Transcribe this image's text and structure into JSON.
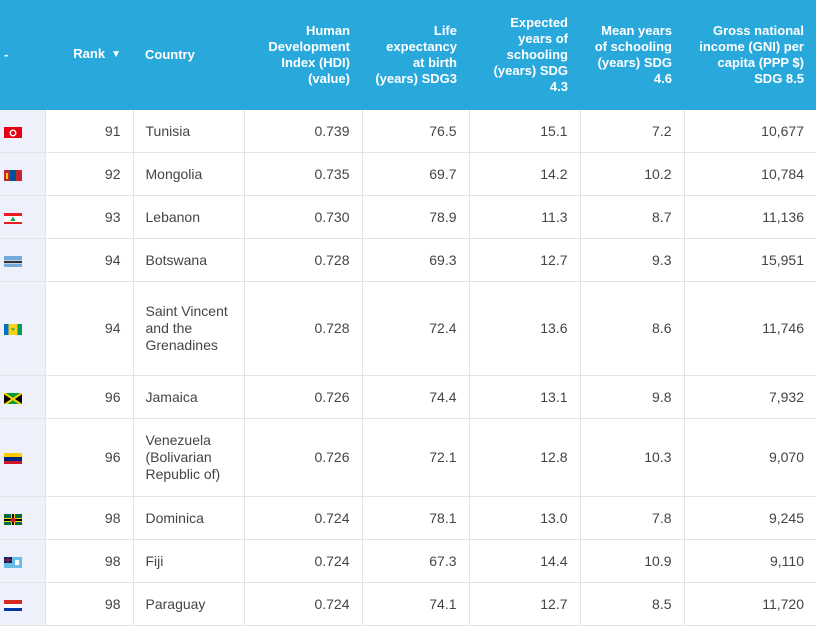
{
  "header": {
    "flag_col": "-",
    "rank": "Rank",
    "country": "Country",
    "hdi": "Human Development Index (HDI) (value)",
    "life": "Life expectancy at birth (years) SDG3",
    "expected": "Expected years of schooling (years) SDG 4.3",
    "mean": "Mean years of schooling (years) SDG 4.6",
    "gni": "Gross national income (GNI) per capita (PPP $) SDG 8.5"
  },
  "rows": [
    {
      "flag": "tunisia-flag-icon",
      "rank": "91",
      "country": "Tunisia",
      "hdi": "0.739",
      "life": "76.5",
      "expected": "15.1",
      "mean": "7.2",
      "gni": "10,677"
    },
    {
      "flag": "mongolia-flag-icon",
      "rank": "92",
      "country": "Mongolia",
      "hdi": "0.735",
      "life": "69.7",
      "expected": "14.2",
      "mean": "10.2",
      "gni": "10,784"
    },
    {
      "flag": "lebanon-flag-icon",
      "rank": "93",
      "country": "Lebanon",
      "hdi": "0.730",
      "life": "78.9",
      "expected": "11.3",
      "mean": "8.7",
      "gni": "11,136"
    },
    {
      "flag": "botswana-flag-icon",
      "rank": "94",
      "country": "Botswana",
      "hdi": "0.728",
      "life": "69.3",
      "expected": "12.7",
      "mean": "9.3",
      "gni": "15,951"
    },
    {
      "flag": "saint-vincent-flag-icon",
      "rank": "94",
      "country": "Saint Vincent and the Grenadines",
      "hdi": "0.728",
      "life": "72.4",
      "expected": "13.6",
      "mean": "8.6",
      "gni": "11,746"
    },
    {
      "flag": "jamaica-flag-icon",
      "rank": "96",
      "country": "Jamaica",
      "hdi": "0.726",
      "life": "74.4",
      "expected": "13.1",
      "mean": "9.8",
      "gni": "7,932"
    },
    {
      "flag": "venezuela-flag-icon",
      "rank": "96",
      "country": "Venezuela (Bolivarian Republic of)",
      "hdi": "0.726",
      "life": "72.1",
      "expected": "12.8",
      "mean": "10.3",
      "gni": "9,070"
    },
    {
      "flag": "dominica-flag-icon",
      "rank": "98",
      "country": "Dominica",
      "hdi": "0.724",
      "life": "78.1",
      "expected": "13.0",
      "mean": "7.8",
      "gni": "9,245"
    },
    {
      "flag": "fiji-flag-icon",
      "rank": "98",
      "country": "Fiji",
      "hdi": "0.724",
      "life": "67.3",
      "expected": "14.4",
      "mean": "10.9",
      "gni": "9,110"
    },
    {
      "flag": "paraguay-flag-icon",
      "rank": "98",
      "country": "Paraguay",
      "hdi": "0.724",
      "life": "74.1",
      "expected": "12.7",
      "mean": "8.5",
      "gni": "11,720"
    }
  ],
  "colors": {
    "header_bg": "#29a8dc",
    "flag_col_bg": "#eef0fb",
    "text": "#444444"
  }
}
